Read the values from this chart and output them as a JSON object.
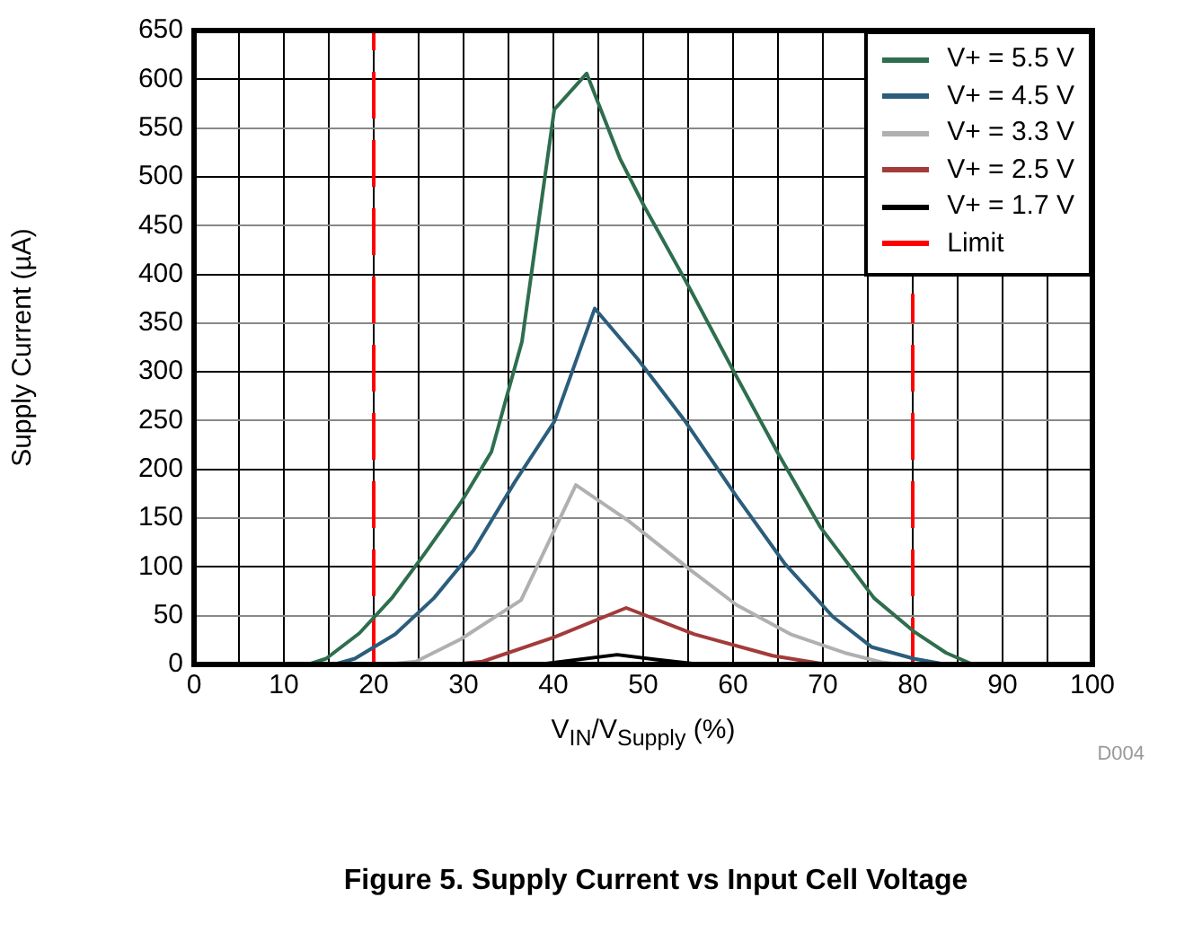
{
  "chart_data": {
    "type": "line",
    "title": "Figure 5. Supply Current vs Input Cell Voltage",
    "xlabel": "V$_{IN}$/V$_{Supply}$ (%)",
    "ylabel": "Supply Current (µA)",
    "annotations": [
      "D004"
    ],
    "xlim": [
      0,
      100
    ],
    "xticks": [
      0,
      {
        "value": 5,
        "label": null
      },
      10,
      {
        "value": 15,
        "label": null
      },
      20,
      {
        "value": 25,
        "label": null
      },
      30,
      {
        "value": 35,
        "label": null
      },
      40,
      {
        "value": 45,
        "label": null
      },
      50,
      {
        "value": 55,
        "label": null
      },
      60,
      {
        "value": 65,
        "label": null
      },
      70,
      {
        "value": 75,
        "label": null
      },
      80,
      {
        "value": 85,
        "label": null
      },
      90,
      {
        "value": 95,
        "label": null
      },
      100
    ],
    "ylim": [
      0,
      650
    ],
    "yticks": [
      0,
      50,
      100,
      150,
      200,
      250,
      300,
      350,
      400,
      450,
      500,
      550,
      600,
      650
    ],
    "grid": true,
    "legend": "top right",
    "marker": "none",
    "line_style": "solid",
    "series": [
      {
        "name": "V+ = 5.5 V",
        "color": "#2e6e4e",
        "x": [
          12.7,
          14.7,
          18.4,
          22.1,
          25.7,
          29.7,
          33.1,
          36.5,
          40.1,
          43.7,
          47.4,
          50.1,
          55.1,
          60.4,
          65.1,
          69.7,
          75.7,
          80.1,
          83.7,
          86.7
        ],
        "values": [
          0,
          6,
          32,
          69,
          114,
          166,
          218,
          331,
          569,
          606,
          519,
          470,
          387,
          295,
          215,
          141,
          68,
          34,
          12,
          0
        ]
      },
      {
        "name": "V+ = 4.5 V",
        "color": "#2b5d7c",
        "x": [
          15.6,
          17.9,
          22.4,
          26.7,
          31.1,
          35.7,
          40.1,
          44.6,
          49.4,
          54.7,
          60.4,
          65.7,
          71.1,
          75.4,
          80.1,
          83.7
        ],
        "values": [
          0,
          6,
          31,
          68,
          117,
          187,
          249,
          365,
          313,
          249,
          172,
          104,
          49,
          18,
          6,
          0
        ]
      },
      {
        "name": "V+ = 3.3 V",
        "color": "#b0b0b0",
        "x": [
          21.4,
          24.7,
          29.7,
          36.4,
          42.5,
          48.4,
          55.1,
          60.4,
          66.4,
          72.4,
          76.7,
          78.5
        ],
        "values": [
          0,
          3,
          26,
          66,
          184,
          147,
          98,
          61,
          31,
          12,
          2,
          0
        ]
      },
      {
        "name": "V+ = 2.5 V",
        "color": "#a33b3b",
        "x": [
          28.7,
          32.1,
          40.1,
          48.1,
          55.7,
          64.4,
          70.4
        ],
        "values": [
          0,
          3,
          28,
          58,
          31,
          9,
          0
        ]
      },
      {
        "name": "V+ = 1.7 V",
        "color": "#000000",
        "x": [
          38.4,
          47.1,
          51.4,
          56.4
        ],
        "values": [
          0,
          10,
          5,
          0
        ]
      },
      {
        "name": "Limit",
        "color": "#ff0000",
        "line_style": "dashed",
        "x": [
          20,
          20
        ],
        "values": [
          0,
          650
        ]
      },
      {
        "color": "#ff0000",
        "line_style": "dashed",
        "x": [
          80,
          80
        ],
        "values": [
          0,
          380
        ]
      }
    ]
  }
}
